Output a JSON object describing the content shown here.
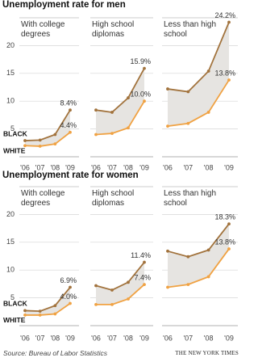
{
  "chart_data": [
    {
      "type": "line",
      "title": "Unemployment rate for men",
      "categories": [
        "'06",
        "'07",
        "'08",
        "'09"
      ],
      "ylim": [
        0,
        25
      ],
      "yticks": [
        5,
        10,
        15,
        20
      ],
      "grid": true,
      "series": [
        {
          "name": "BLACK",
          "color": "#a2733d"
        },
        {
          "name": "WHITE",
          "color": "#f0a243"
        }
      ],
      "panels": [
        {
          "title": "With college degrees",
          "values": [
            [
              2.9,
              3.0,
              4.0,
              8.4
            ],
            [
              2.0,
              1.9,
              2.3,
              4.4
            ]
          ],
          "value_labels": [
            [
              null,
              null,
              null,
              "8.4%"
            ],
            [
              null,
              null,
              null,
              "4.4%"
            ]
          ]
        },
        {
          "title": "High school diplomas",
          "values": [
            [
              8.4,
              8.0,
              10.6,
              15.9
            ],
            [
              4.0,
              4.2,
              5.2,
              10.0
            ]
          ],
          "value_labels": [
            [
              null,
              null,
              null,
              "15.9%"
            ],
            [
              null,
              null,
              null,
              "10.0%"
            ]
          ]
        },
        {
          "title": "Less than high school",
          "values": [
            [
              12.2,
              11.7,
              15.4,
              24.2
            ],
            [
              5.5,
              6.0,
              8.0,
              13.8
            ]
          ],
          "value_labels": [
            [
              null,
              null,
              null,
              "24.2%"
            ],
            [
              null,
              null,
              null,
              "13.8%"
            ]
          ]
        }
      ]
    },
    {
      "type": "line",
      "title": "Unemployment rate for women",
      "categories": [
        "'06",
        "'07",
        "'08",
        "'09"
      ],
      "ylim": [
        0,
        25
      ],
      "yticks": [
        5,
        10,
        15,
        20
      ],
      "grid": true,
      "series": [
        {
          "name": "BLACK",
          "color": "#a2733d"
        },
        {
          "name": "WHITE",
          "color": "#f0a243"
        }
      ],
      "panels": [
        {
          "title": "With college degrees",
          "values": [
            [
              2.7,
              2.6,
              3.6,
              6.9
            ],
            [
              1.9,
              1.9,
              2.1,
              4.0
            ]
          ],
          "value_labels": [
            [
              null,
              null,
              null,
              "6.9%"
            ],
            [
              null,
              null,
              null,
              "4.0%"
            ]
          ]
        },
        {
          "title": "High school diplomas",
          "values": [
            [
              7.2,
              6.4,
              7.8,
              11.4
            ],
            [
              3.8,
              3.8,
              4.8,
              7.4
            ]
          ],
          "value_labels": [
            [
              null,
              null,
              null,
              "11.4%"
            ],
            [
              null,
              null,
              null,
              "7.4%"
            ]
          ]
        },
        {
          "title": "Less than high school",
          "values": [
            [
              13.4,
              12.4,
              13.6,
              18.3
            ],
            [
              6.9,
              7.4,
              8.8,
              13.8
            ]
          ],
          "value_labels": [
            [
              null,
              null,
              null,
              "18.3%"
            ],
            [
              null,
              null,
              null,
              "13.8%"
            ]
          ]
        }
      ]
    }
  ],
  "source": "Source: Bureau of Labor Statistics",
  "credit": "THE NEW YORK TIMES"
}
